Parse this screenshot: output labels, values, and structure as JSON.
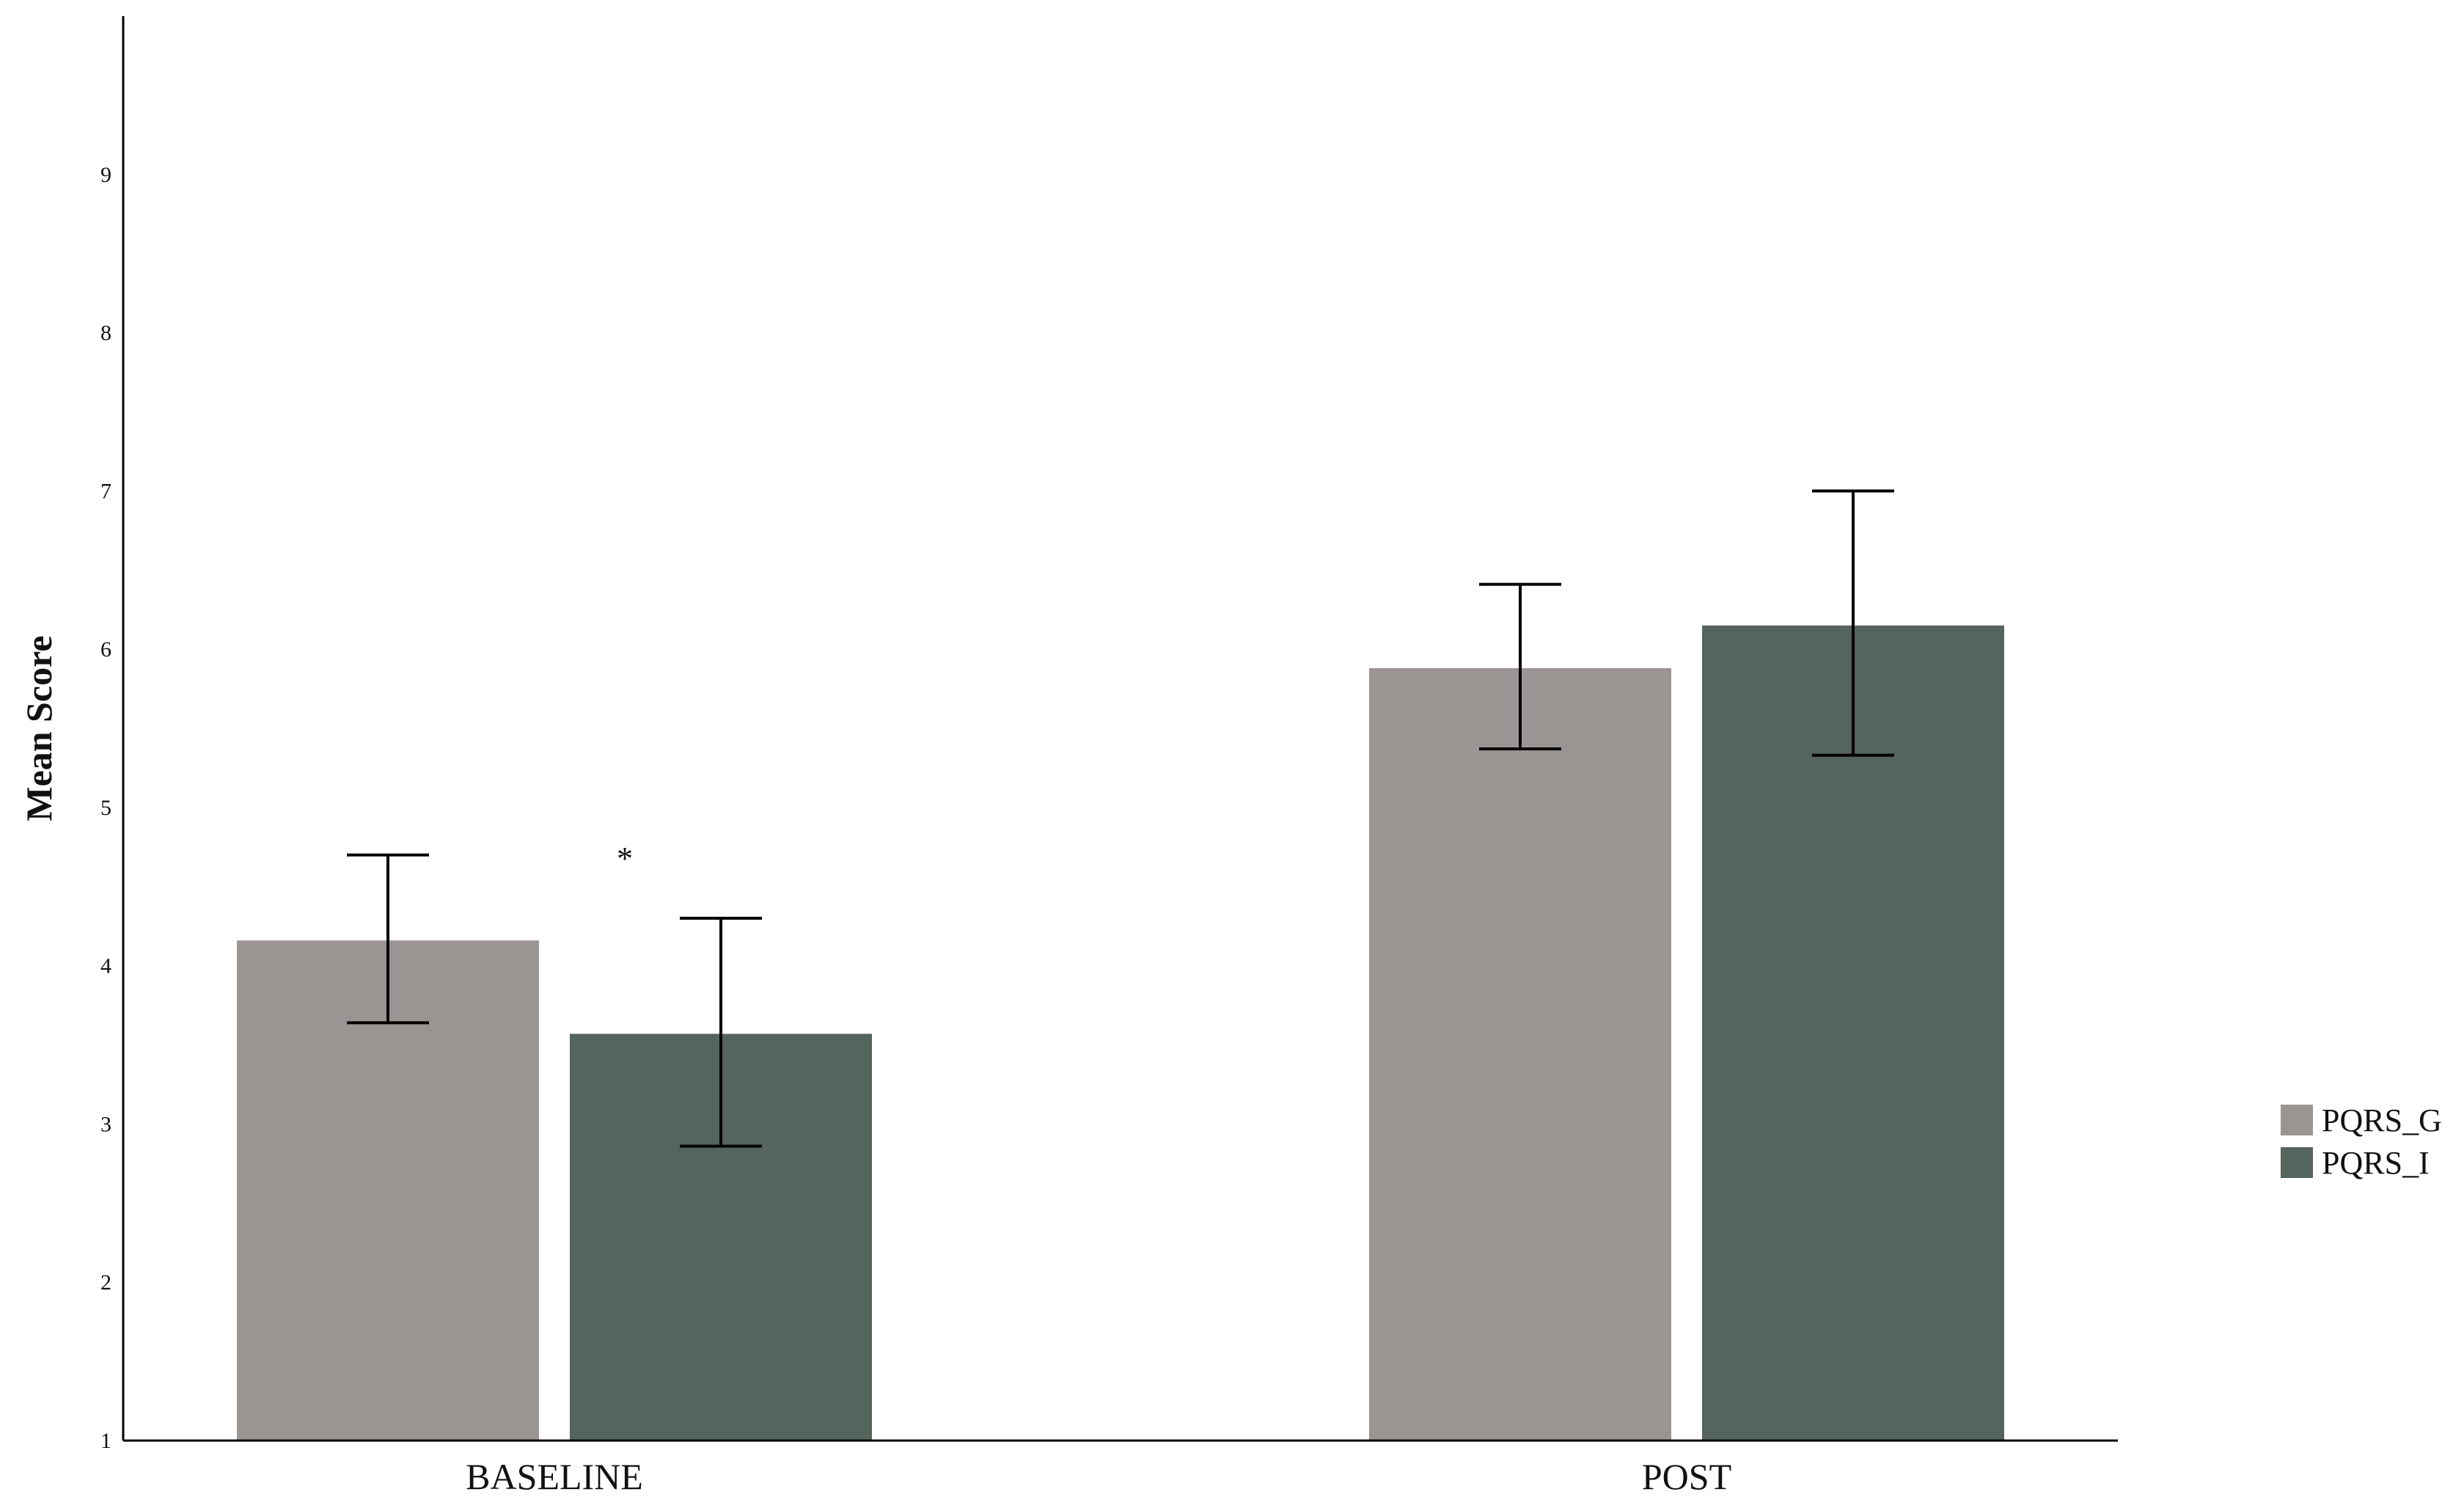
{
  "chart_data": {
    "type": "bar",
    "ylabel": "Mean Score",
    "xlabel": "",
    "categories": [
      "BASELINE",
      "POST"
    ],
    "ylim": [
      1,
      10
    ],
    "yticks": [
      "1",
      "2",
      "3",
      "4",
      "5",
      "6",
      "7",
      "8",
      "9"
    ],
    "grid": false,
    "legend_position": "right",
    "series": [
      {
        "name": "PQRS_G",
        "color": "#9a9493",
        "values": [
          4.16,
          5.88
        ],
        "error_low": [
          3.64,
          5.37
        ],
        "error_high": [
          4.7,
          6.41
        ]
      },
      {
        "name": "PQRS_I",
        "color": "#55645c",
        "values": [
          3.57,
          6.15
        ],
        "error_low": [
          2.86,
          5.33
        ],
        "error_high": [
          4.3,
          7.0
        ]
      }
    ],
    "annotations": [
      {
        "text": "*",
        "category": "BASELINE",
        "y": 4.75
      }
    ]
  }
}
